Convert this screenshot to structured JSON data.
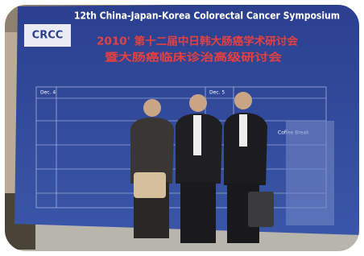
{
  "banner": {
    "logo": "CRCC",
    "title": "12th China-Japan-Korea Colorectal Cancer Symposium",
    "subtitle_line1": "2010' 第十二届中日韩大肠癌学术研讨会",
    "subtitle_line2": "暨大肠癌临床诊治高级研讨会",
    "agenda": {
      "day1": "Dec. 4",
      "day2": "Dec. 5",
      "break": "Coffee Break"
    }
  }
}
